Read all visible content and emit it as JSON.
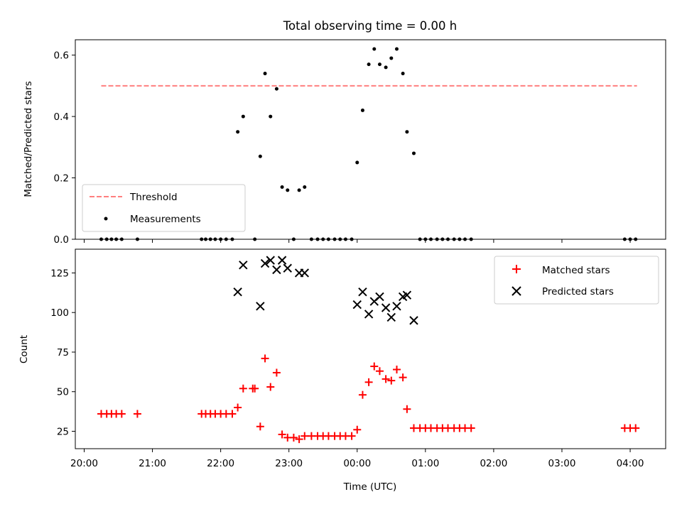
{
  "chart_data": [
    {
      "type": "scatter",
      "title": "Total observing time = 0.00 h",
      "xlabel": "",
      "ylabel": "Matched/Predicted stars",
      "ylim": [
        0,
        0.65
      ],
      "yticks": [
        0.0,
        0.2,
        0.4,
        0.6
      ],
      "ytick_labels": [
        "0.0",
        "0.2",
        "0.4",
        "0.6"
      ],
      "x_range_hours": [
        19.87,
        28.52
      ],
      "threshold": {
        "name": "Threshold",
        "value": 0.5,
        "x_start": 20.25,
        "x_end": 28.1,
        "color": "#ff7f7f"
      },
      "legend_placement": "lower-left",
      "series": [
        {
          "name": "Measurements",
          "color": "#000000",
          "marker": "dot",
          "points": [
            [
              20.25,
              0
            ],
            [
              20.33,
              0
            ],
            [
              20.4,
              0
            ],
            [
              20.47,
              0
            ],
            [
              20.55,
              0
            ],
            [
              20.78,
              0
            ],
            [
              21.72,
              0
            ],
            [
              21.78,
              0
            ],
            [
              21.85,
              0
            ],
            [
              21.92,
              0
            ],
            [
              22.0,
              0
            ],
            [
              22.08,
              0
            ],
            [
              22.17,
              0
            ],
            [
              22.25,
              0.35
            ],
            [
              22.33,
              0.4
            ],
            [
              22.5,
              0
            ],
            [
              22.58,
              0.27
            ],
            [
              22.65,
              0.54
            ],
            [
              22.73,
              0.4
            ],
            [
              22.82,
              0.49
            ],
            [
              22.9,
              0.17
            ],
            [
              22.98,
              0.16
            ],
            [
              23.07,
              0
            ],
            [
              23.15,
              0.16
            ],
            [
              23.23,
              0.17
            ],
            [
              23.33,
              0
            ],
            [
              23.42,
              0
            ],
            [
              23.5,
              0
            ],
            [
              23.58,
              0
            ],
            [
              23.67,
              0
            ],
            [
              23.75,
              0
            ],
            [
              23.83,
              0
            ],
            [
              23.92,
              0
            ],
            [
              24.0,
              0.25
            ],
            [
              24.08,
              0.42
            ],
            [
              24.17,
              0.57
            ],
            [
              24.25,
              0.62
            ],
            [
              24.33,
              0.57
            ],
            [
              24.42,
              0.56
            ],
            [
              24.5,
              0.59
            ],
            [
              24.58,
              0.62
            ],
            [
              24.67,
              0.54
            ],
            [
              24.73,
              0.35
            ],
            [
              24.83,
              0.28
            ],
            [
              24.92,
              0
            ],
            [
              25.0,
              0
            ],
            [
              25.08,
              0
            ],
            [
              25.17,
              0
            ],
            [
              25.25,
              0
            ],
            [
              25.33,
              0
            ],
            [
              25.42,
              0
            ],
            [
              25.5,
              0
            ],
            [
              25.58,
              0
            ],
            [
              25.67,
              0
            ],
            [
              27.92,
              0
            ],
            [
              28.0,
              0
            ],
            [
              28.08,
              0
            ]
          ]
        }
      ]
    },
    {
      "type": "scatter",
      "title": "",
      "xlabel": "Time (UTC)",
      "ylabel": "Count",
      "ylim": [
        14,
        140
      ],
      "yticks": [
        25,
        50,
        75,
        100,
        125
      ],
      "ytick_labels": [
        "25",
        "50",
        "75",
        "100",
        "125"
      ],
      "xticks": [
        20,
        21,
        22,
        23,
        24,
        25,
        26,
        27,
        28
      ],
      "xtick_labels": [
        "20:00",
        "21:00",
        "22:00",
        "23:00",
        "00:00",
        "01:00",
        "02:00",
        "03:00",
        "04:00"
      ],
      "x_range_hours": [
        19.87,
        28.52
      ],
      "legend_placement": "upper-right",
      "series": [
        {
          "name": "Matched stars",
          "color": "#ff0000",
          "marker": "plus",
          "points": [
            [
              20.25,
              36
            ],
            [
              20.33,
              36
            ],
            [
              20.4,
              36
            ],
            [
              20.47,
              36
            ],
            [
              20.55,
              36
            ],
            [
              20.78,
              36
            ],
            [
              21.72,
              36
            ],
            [
              21.78,
              36
            ],
            [
              21.85,
              36
            ],
            [
              21.92,
              36
            ],
            [
              22.0,
              36
            ],
            [
              22.08,
              36
            ],
            [
              22.17,
              36
            ],
            [
              22.25,
              40
            ],
            [
              22.33,
              52
            ],
            [
              22.47,
              52
            ],
            [
              22.5,
              52
            ],
            [
              22.58,
              28
            ],
            [
              22.65,
              71
            ],
            [
              22.73,
              53
            ],
            [
              22.82,
              62
            ],
            [
              22.9,
              23
            ],
            [
              22.98,
              21
            ],
            [
              23.07,
              21
            ],
            [
              23.15,
              20
            ],
            [
              23.23,
              22
            ],
            [
              23.33,
              22
            ],
            [
              23.42,
              22
            ],
            [
              23.5,
              22
            ],
            [
              23.58,
              22
            ],
            [
              23.67,
              22
            ],
            [
              23.75,
              22
            ],
            [
              23.83,
              22
            ],
            [
              23.92,
              22
            ],
            [
              24.0,
              26
            ],
            [
              24.08,
              48
            ],
            [
              24.17,
              56
            ],
            [
              24.25,
              66
            ],
            [
              24.33,
              63
            ],
            [
              24.42,
              58
            ],
            [
              24.5,
              57
            ],
            [
              24.58,
              64
            ],
            [
              24.67,
              59
            ],
            [
              24.73,
              39
            ],
            [
              24.83,
              27
            ],
            [
              24.92,
              27
            ],
            [
              25.0,
              27
            ],
            [
              25.08,
              27
            ],
            [
              25.17,
              27
            ],
            [
              25.25,
              27
            ],
            [
              25.33,
              27
            ],
            [
              25.42,
              27
            ],
            [
              25.5,
              27
            ],
            [
              25.58,
              27
            ],
            [
              25.67,
              27
            ],
            [
              27.92,
              27
            ],
            [
              28.0,
              27
            ],
            [
              28.08,
              27
            ]
          ]
        },
        {
          "name": "Predicted stars",
          "color": "#000000",
          "marker": "x",
          "points": [
            [
              22.25,
              113
            ],
            [
              22.33,
              130
            ],
            [
              22.58,
              104
            ],
            [
              22.65,
              131
            ],
            [
              22.73,
              133
            ],
            [
              22.82,
              127
            ],
            [
              22.9,
              133
            ],
            [
              22.98,
              128
            ],
            [
              23.15,
              125
            ],
            [
              23.23,
              125
            ],
            [
              24.0,
              105
            ],
            [
              24.08,
              113
            ],
            [
              24.17,
              99
            ],
            [
              24.25,
              107
            ],
            [
              24.33,
              110
            ],
            [
              24.42,
              103
            ],
            [
              24.5,
              97
            ],
            [
              24.58,
              104
            ],
            [
              24.67,
              110
            ],
            [
              24.73,
              111
            ],
            [
              24.83,
              95
            ]
          ]
        }
      ]
    }
  ]
}
